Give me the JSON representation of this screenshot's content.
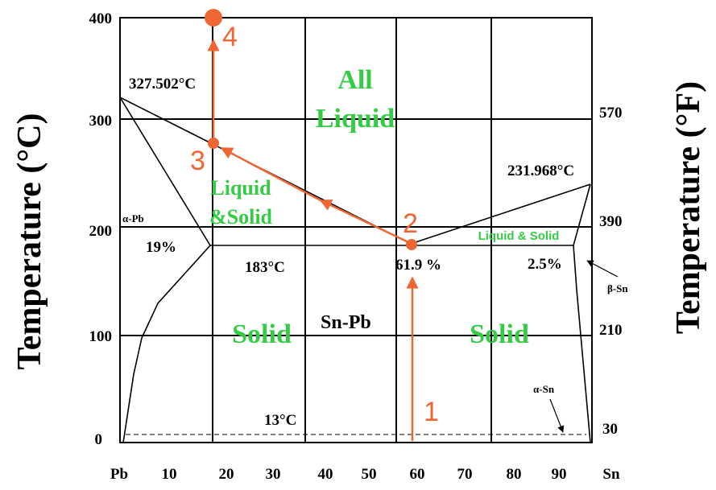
{
  "y_axis_left_title": "Temperature  (°C)",
  "y_axis_right_title": "Temperature (°F)",
  "y_ticks_c": [
    "400",
    "300",
    "200",
    "100",
    "0"
  ],
  "y_ticks_f": [
    "570",
    "390",
    "210",
    "30"
  ],
  "x_ticks": [
    "Pb",
    "10",
    "20",
    "30",
    "40",
    "50",
    "60",
    "70",
    "80",
    "90",
    "Sn"
  ],
  "labels": {
    "pb_melt": "327.502°C",
    "sn_melt": "231.968°C",
    "eutectic_temp": "183°C",
    "eutectic_comp": "61.9 %",
    "pb_solubility": "19%",
    "sn_solubility": "2.5%",
    "transition_temp": "13°C",
    "alpha_pb": "α-Pb",
    "beta_sn": "β-Sn",
    "alpha_sn": "α-Sn",
    "alloy": "Sn-Pb"
  },
  "regions": {
    "all_liquid_1": "All",
    "all_liquid_2": "Liquid",
    "liquid_solid_left_1": "Liquid",
    "liquid_solid_left_2": "&Solid",
    "liquid_solid_right": "Liquid & Solid",
    "solid_left": "Solid",
    "solid_right": "Solid"
  },
  "steps": [
    "1",
    "2",
    "3",
    "4"
  ],
  "colors": {
    "path": "#ee6633",
    "region": "#33cc44",
    "lines": "#000000"
  }
}
